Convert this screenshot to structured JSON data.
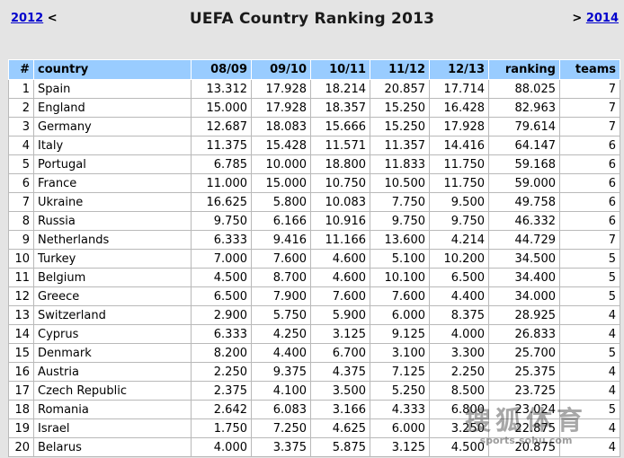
{
  "nav": {
    "prev_year": "2012",
    "prev_arrow": "<",
    "title": "UEFA Country Ranking 2013",
    "next_arrow": ">",
    "next_year": "2014"
  },
  "table": {
    "headers": [
      "#",
      "country",
      "08/09",
      "09/10",
      "10/11",
      "11/12",
      "12/13",
      "ranking",
      "teams"
    ],
    "rows": [
      {
        "num": "1",
        "country": "Spain",
        "s0809": "13.312",
        "s0910": "17.928",
        "s1011": "18.214",
        "s1112": "20.857",
        "s1213": "17.714",
        "ranking": "88.025",
        "teams": "7"
      },
      {
        "num": "2",
        "country": "England",
        "s0809": "15.000",
        "s0910": "17.928",
        "s1011": "18.357",
        "s1112": "15.250",
        "s1213": "16.428",
        "ranking": "82.963",
        "teams": "7"
      },
      {
        "num": "3",
        "country": "Germany",
        "s0809": "12.687",
        "s0910": "18.083",
        "s1011": "15.666",
        "s1112": "15.250",
        "s1213": "17.928",
        "ranking": "79.614",
        "teams": "7"
      },
      {
        "num": "4",
        "country": "Italy",
        "s0809": "11.375",
        "s0910": "15.428",
        "s1011": "11.571",
        "s1112": "11.357",
        "s1213": "14.416",
        "ranking": "64.147",
        "teams": "6"
      },
      {
        "num": "5",
        "country": "Portugal",
        "s0809": "6.785",
        "s0910": "10.000",
        "s1011": "18.800",
        "s1112": "11.833",
        "s1213": "11.750",
        "ranking": "59.168",
        "teams": "6"
      },
      {
        "num": "6",
        "country": "France",
        "s0809": "11.000",
        "s0910": "15.000",
        "s1011": "10.750",
        "s1112": "10.500",
        "s1213": "11.750",
        "ranking": "59.000",
        "teams": "6"
      },
      {
        "num": "7",
        "country": "Ukraine",
        "s0809": "16.625",
        "s0910": "5.800",
        "s1011": "10.083",
        "s1112": "7.750",
        "s1213": "9.500",
        "ranking": "49.758",
        "teams": "6"
      },
      {
        "num": "8",
        "country": "Russia",
        "s0809": "9.750",
        "s0910": "6.166",
        "s1011": "10.916",
        "s1112": "9.750",
        "s1213": "9.750",
        "ranking": "46.332",
        "teams": "6"
      },
      {
        "num": "9",
        "country": "Netherlands",
        "s0809": "6.333",
        "s0910": "9.416",
        "s1011": "11.166",
        "s1112": "13.600",
        "s1213": "4.214",
        "ranking": "44.729",
        "teams": "7"
      },
      {
        "num": "10",
        "country": "Turkey",
        "s0809": "7.000",
        "s0910": "7.600",
        "s1011": "4.600",
        "s1112": "5.100",
        "s1213": "10.200",
        "ranking": "34.500",
        "teams": "5"
      },
      {
        "num": "11",
        "country": "Belgium",
        "s0809": "4.500",
        "s0910": "8.700",
        "s1011": "4.600",
        "s1112": "10.100",
        "s1213": "6.500",
        "ranking": "34.400",
        "teams": "5"
      },
      {
        "num": "12",
        "country": "Greece",
        "s0809": "6.500",
        "s0910": "7.900",
        "s1011": "7.600",
        "s1112": "7.600",
        "s1213": "4.400",
        "ranking": "34.000",
        "teams": "5"
      },
      {
        "num": "13",
        "country": "Switzerland",
        "s0809": "2.900",
        "s0910": "5.750",
        "s1011": "5.900",
        "s1112": "6.000",
        "s1213": "8.375",
        "ranking": "28.925",
        "teams": "4"
      },
      {
        "num": "14",
        "country": "Cyprus",
        "s0809": "6.333",
        "s0910": "4.250",
        "s1011": "3.125",
        "s1112": "9.125",
        "s1213": "4.000",
        "ranking": "26.833",
        "teams": "4"
      },
      {
        "num": "15",
        "country": "Denmark",
        "s0809": "8.200",
        "s0910": "4.400",
        "s1011": "6.700",
        "s1112": "3.100",
        "s1213": "3.300",
        "ranking": "25.700",
        "teams": "5"
      },
      {
        "num": "16",
        "country": "Austria",
        "s0809": "2.250",
        "s0910": "9.375",
        "s1011": "4.375",
        "s1112": "7.125",
        "s1213": "2.250",
        "ranking": "25.375",
        "teams": "4"
      },
      {
        "num": "17",
        "country": "Czech Republic",
        "s0809": "2.375",
        "s0910": "4.100",
        "s1011": "3.500",
        "s1112": "5.250",
        "s1213": "8.500",
        "ranking": "23.725",
        "teams": "4"
      },
      {
        "num": "18",
        "country": "Romania",
        "s0809": "2.642",
        "s0910": "6.083",
        "s1011": "3.166",
        "s1112": "4.333",
        "s1213": "6.800",
        "ranking": "23.024",
        "teams": "5"
      },
      {
        "num": "19",
        "country": "Israel",
        "s0809": "1.750",
        "s0910": "7.250",
        "s1011": "4.625",
        "s1112": "6.000",
        "s1213": "3.250",
        "ranking": "22.875",
        "teams": "4"
      },
      {
        "num": "20",
        "country": "Belarus",
        "s0809": "4.000",
        "s0910": "3.375",
        "s1011": "5.875",
        "s1112": "3.125",
        "s1213": "4.500",
        "ranking": "20.875",
        "teams": "4"
      }
    ]
  },
  "watermark": {
    "text_cn": "搜狐体育",
    "url": "sports.sohu.com"
  },
  "colors": {
    "header_bg": "#99ccff",
    "page_bg": "#e4e4e4",
    "link": "#0000cc"
  }
}
